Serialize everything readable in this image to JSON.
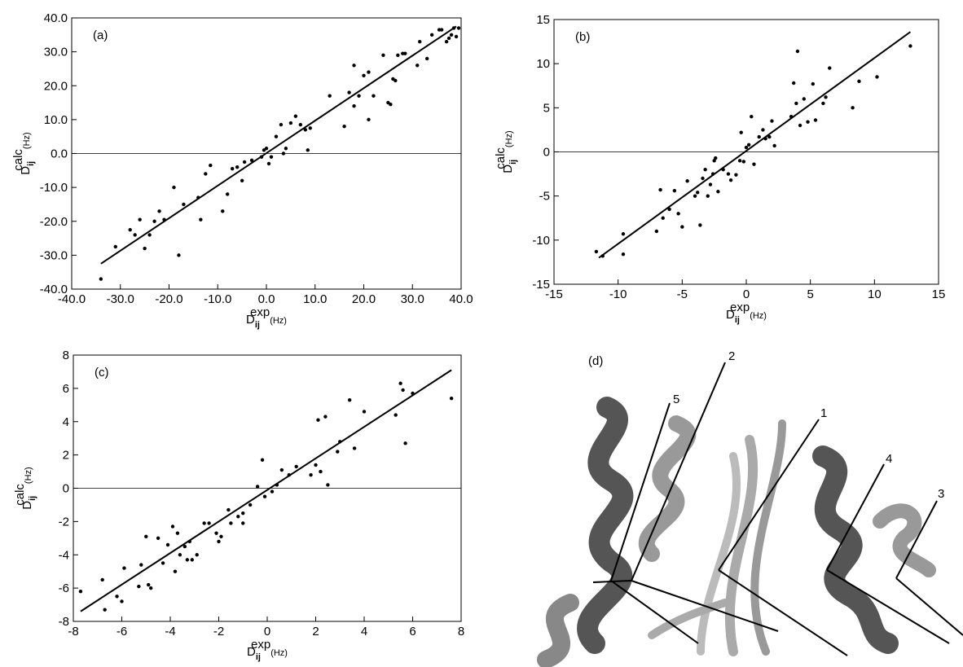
{
  "chart_data": [
    {
      "type": "scatter",
      "label": "(a)",
      "color": "#000000",
      "zero_line": true,
      "xlabel": {
        "base": "D",
        "sub": "ij",
        "sup": "exp",
        "unit": "(Hz)"
      },
      "ylabel": {
        "base": "D",
        "sub": "ij",
        "sup": "calc",
        "unit": "(Hz)"
      },
      "xlim": [
        -40,
        40
      ],
      "ylim": [
        -40,
        40
      ],
      "xticks": [
        {
          "value": -40,
          "label": "-40.0"
        },
        {
          "value": -30,
          "label": "-30.0"
        },
        {
          "value": -20,
          "label": "-20.0"
        },
        {
          "value": -10,
          "label": "-10.0"
        },
        {
          "value": 0,
          "label": "0.0"
        },
        {
          "value": 10,
          "label": "10.0"
        },
        {
          "value": 20,
          "label": "20.0"
        },
        {
          "value": 30,
          "label": "30.0"
        },
        {
          "value": 40,
          "label": "40.0"
        }
      ],
      "yticks": [
        {
          "value": -40,
          "label": "-40.0"
        },
        {
          "value": -30,
          "label": "-30.0"
        },
        {
          "value": -20,
          "label": "-20.0"
        },
        {
          "value": -10,
          "label": "-10.0"
        },
        {
          "value": 0,
          "label": "0.0"
        },
        {
          "value": 10,
          "label": "10.0"
        },
        {
          "value": 20,
          "label": "20.0"
        },
        {
          "value": 30,
          "label": "30.0"
        },
        {
          "value": 40,
          "label": "40.0"
        }
      ],
      "x": [
        -34,
        -31,
        -28,
        -27,
        -26,
        -25,
        -24,
        -23,
        -22,
        -21,
        -19,
        -18,
        -17,
        -14,
        -13.5,
        -12.5,
        -11.5,
        -9,
        -8,
        -7,
        -6,
        -5,
        -4.5,
        -3,
        -1,
        -0.5,
        0,
        0.5,
        1,
        2,
        3,
        3.5,
        4,
        5,
        6,
        7,
        8,
        8.5,
        9,
        13,
        16,
        17,
        18,
        18,
        19,
        20,
        21,
        21,
        22,
        24,
        25,
        25.5,
        26,
        26.5,
        27,
        28,
        28.5,
        31,
        31.5,
        33,
        34,
        35.5,
        36,
        37,
        37.5,
        38,
        38.5,
        39,
        39.5
      ],
      "values": [
        -37,
        -27.5,
        -22.5,
        -24,
        -19.5,
        -28,
        -24,
        -20,
        -17,
        -19.5,
        -10,
        -30,
        -15,
        -13,
        -19.5,
        -6,
        -3.5,
        -17,
        -12,
        -4.5,
        -4,
        -8,
        -2.5,
        -2,
        -1,
        1,
        1.5,
        -3,
        -1,
        5,
        8.5,
        0,
        1.5,
        9,
        11,
        8.5,
        7,
        1,
        7.5,
        17,
        8,
        18,
        14,
        26,
        17,
        23,
        24,
        10,
        17,
        29,
        15,
        14.5,
        22,
        21.5,
        29,
        29.5,
        29.5,
        26,
        33,
        28,
        35,
        36.5,
        36.5,
        33,
        34,
        35,
        37,
        34.5,
        37
      ],
      "fit_x": [
        -34,
        39
      ],
      "fit_values": [
        -32.5,
        37.5
      ]
    },
    {
      "type": "scatter",
      "label": "(b)",
      "color": "#000000",
      "zero_line": true,
      "xlabel": {
        "base": "D",
        "sub": "ij",
        "sup": "exp",
        "unit": "(Hz)"
      },
      "ylabel": {
        "base": "D",
        "sub": "ij",
        "sup": "calc",
        "unit": "(Hz)"
      },
      "xlim": [
        -15,
        15
      ],
      "ylim": [
        -15,
        15
      ],
      "xticks": [
        -15,
        -10,
        -5,
        0,
        5,
        10,
        15
      ],
      "yticks": [
        -15,
        -10,
        -5,
        0,
        5,
        10,
        15
      ],
      "x": [
        -11.7,
        -11.2,
        -9.6,
        -9.6,
        -7,
        -6.7,
        -6.5,
        -6,
        -5.6,
        -5.3,
        -5,
        -4.6,
        -4,
        -3.8,
        -3.6,
        -3.4,
        -3.2,
        -3,
        -2.8,
        -2.6,
        -2.5,
        -2.4,
        -2.2,
        -1.8,
        -1.4,
        -1.2,
        -0.8,
        -0.5,
        -0.4,
        -0.2,
        0,
        0.2,
        0.4,
        0.6,
        1,
        1.3,
        1.5,
        1.8,
        2,
        2.2,
        3.5,
        3.7,
        3.9,
        4,
        4.2,
        4.5,
        4.8,
        5.2,
        5.4,
        6,
        6.2,
        6.5,
        8.3,
        8.8,
        10.2,
        12.8
      ],
      "values": [
        -11.3,
        -11.8,
        -9.3,
        -11.6,
        -9,
        -4.3,
        -7.5,
        -6.5,
        -4.4,
        -7,
        -8.5,
        -3.3,
        -5,
        -4.6,
        -8.3,
        -3,
        -2,
        -5,
        -3.7,
        -2.5,
        -1,
        -0.7,
        -4.5,
        -2,
        -2.5,
        -3.2,
        -2.6,
        -1,
        2.2,
        -1.1,
        0.5,
        0.8,
        4,
        -1.4,
        1.7,
        2.5,
        1.5,
        1.7,
        3.5,
        0.7,
        4,
        7.8,
        5.5,
        11.4,
        3,
        6,
        3.4,
        7.7,
        3.6,
        5.5,
        6.2,
        9.5,
        5,
        8,
        8.5,
        12
      ],
      "fit_x": [
        -11.5,
        12.8
      ],
      "fit_values": [
        -12,
        13.6
      ]
    },
    {
      "type": "scatter",
      "label": "(c)",
      "color": "#000000",
      "zero_line": true,
      "xlabel": {
        "base": "D",
        "sub": "ij",
        "sup": "exp",
        "unit": "(Hz)"
      },
      "ylabel": {
        "base": "D",
        "sub": "ij",
        "sup": "calc",
        "unit": "(Hz)"
      },
      "xlim": [
        -8,
        8
      ],
      "ylim": [
        -8,
        8
      ],
      "xticks": [
        -8,
        -6,
        -4,
        -2,
        0,
        2,
        4,
        6,
        8
      ],
      "yticks": [
        -8,
        -6,
        -4,
        -2,
        0,
        2,
        4,
        6,
        8
      ],
      "x": [
        -7.7,
        -6.8,
        -6.7,
        -6.2,
        -6,
        -5.9,
        -5.3,
        -5.2,
        -5,
        -4.9,
        -4.8,
        -4.5,
        -4.3,
        -4.1,
        -3.9,
        -3.8,
        -3.7,
        -3.6,
        -3.4,
        -3.3,
        -3.2,
        -3.1,
        -2.9,
        -2.6,
        -2.4,
        -2.1,
        -2,
        -1.9,
        -1.6,
        -1.5,
        -1.2,
        -1,
        -1,
        -0.7,
        -0.4,
        -0.2,
        -0.1,
        0.2,
        0.4,
        0.6,
        0.9,
        1.2,
        1.8,
        2,
        2.1,
        2.2,
        2.4,
        2.5,
        2.9,
        3,
        3.4,
        3.6,
        4,
        5.3,
        5.5,
        5.6,
        5.7,
        6,
        7.6
      ],
      "values": [
        -6.2,
        -5.5,
        -7.3,
        -6.5,
        -6.8,
        -4.8,
        -5.9,
        -4.6,
        -2.9,
        -5.8,
        -6,
        -3,
        -4.5,
        -3.4,
        -2.3,
        -5,
        -2.7,
        -4,
        -3.5,
        -4.3,
        -3.2,
        -4.3,
        -4,
        -2.1,
        -2.1,
        -2.7,
        -3.2,
        -2.9,
        -1.3,
        -2.1,
        -1.7,
        -1.5,
        -2.1,
        -1,
        0.1,
        1.7,
        -0.5,
        -0.2,
        0.2,
        1.1,
        0.8,
        1.3,
        0.8,
        1.4,
        4.1,
        1,
        4.3,
        0.2,
        2.2,
        2.8,
        5.3,
        2.4,
        4.6,
        4.4,
        6.3,
        5.9,
        2.7,
        5.7,
        5.4
      ],
      "fit_x": [
        -7.7,
        7.6
      ],
      "fit_values": [
        -7.4,
        7.1
      ]
    }
  ],
  "panel_d": {
    "label": "(d)",
    "axis_labels": [
      "1",
      "2",
      "3",
      "4",
      "5"
    ]
  }
}
